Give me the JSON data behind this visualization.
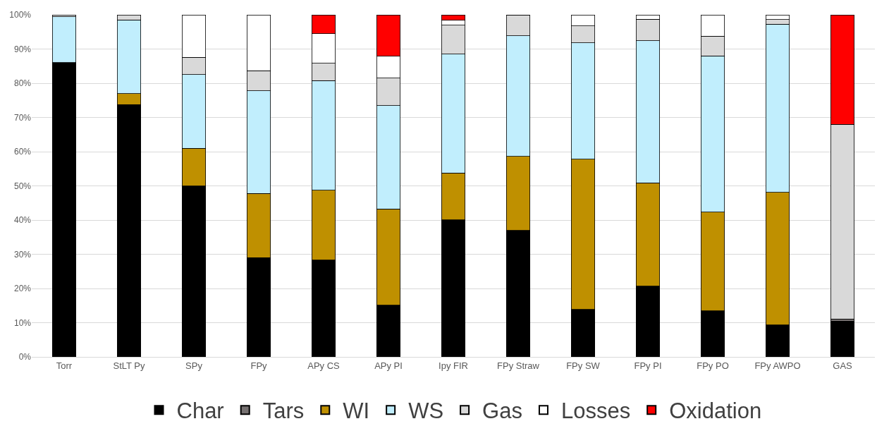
{
  "chart_data": {
    "type": "bar",
    "stacked": true,
    "grid": "y",
    "legend": "bottom",
    "categories": [
      "Torr",
      "StLT Py",
      "SPy",
      "FPy",
      "APy CS",
      "APy PI",
      "Ipy FIR",
      "FPy Straw",
      "FPy SW",
      "FPy PI",
      "FPy PO",
      "FPy AWPO",
      "GAS"
    ],
    "ylim": [
      0,
      100
    ],
    "yticks": [
      {
        "value": 0,
        "label": "0%"
      },
      {
        "value": 10,
        "label": "10%"
      },
      {
        "value": 20,
        "label": "20%"
      },
      {
        "value": 30,
        "label": "30%"
      },
      {
        "value": 40,
        "label": "40%"
      },
      {
        "value": 50,
        "label": "50%"
      },
      {
        "value": 60,
        "label": "60%"
      },
      {
        "value": 70,
        "label": "70%"
      },
      {
        "value": 80,
        "label": "80%"
      },
      {
        "value": 90,
        "label": "90%"
      },
      {
        "value": 100,
        "label": "100%"
      }
    ],
    "series": [
      {
        "name": "Char",
        "color": "#000000",
        "values": [
          86,
          73.8,
          50,
          29,
          28.3,
          15.1,
          40.1,
          37,
          13.9,
          20.7,
          13.5,
          9.3,
          10.5
        ]
      },
      {
        "name": "Tars",
        "color": "#767171",
        "values": [
          null,
          null,
          null,
          null,
          null,
          null,
          null,
          null,
          null,
          null,
          null,
          null,
          0.6
        ]
      },
      {
        "name": "WI",
        "color": "#bf9000",
        "values": [
          null,
          3.2,
          11,
          18.8,
          20.4,
          28.2,
          13.7,
          21.6,
          43.9,
          30.2,
          28.8,
          38.8,
          null
        ]
      },
      {
        "name": "WS",
        "color": "#c1eefd",
        "values": [
          13.4,
          21.5,
          21.5,
          30,
          32.1,
          30.2,
          34.7,
          35.3,
          34,
          41.5,
          45.7,
          49.2,
          null
        ]
      },
      {
        "name": "Gas",
        "color": "#d9d9d9",
        "values": [
          0.6,
          1.5,
          5.1,
          5.9,
          5,
          8,
          8.5,
          5.9,
          5,
          6.3,
          5.8,
          1.3,
          56.9
        ]
      },
      {
        "name": "Losses",
        "color": "#ffffff",
        "values": [
          null,
          null,
          12.4,
          16.3,
          8.7,
          6.4,
          1.4,
          0.2,
          3.2,
          1.3,
          6.2,
          1.4,
          null
        ]
      },
      {
        "name": "Oxidation",
        "color": "#ff0000",
        "values": [
          null,
          null,
          null,
          null,
          5.5,
          12.1,
          1.6,
          null,
          null,
          null,
          null,
          null,
          32
        ]
      }
    ]
  }
}
